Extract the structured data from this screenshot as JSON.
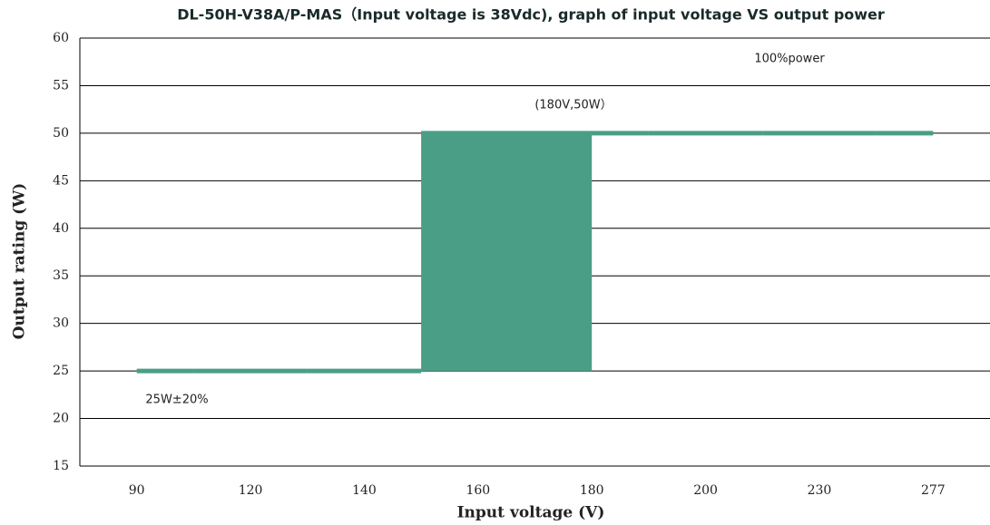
{
  "chart_data": {
    "type": "step",
    "title": "DL-50H-V38A/P-MAS（Input voltage is 38Vdc), graph of input voltage VS output power",
    "x_label": "Input voltage (V)",
    "y_label": "Output rating (W)",
    "categories": [
      "90",
      "120",
      "140",
      "160",
      "180",
      "200",
      "230",
      "277"
    ],
    "values": [
      25,
      25,
      25,
      50,
      50,
      50,
      50,
      50
    ],
    "color": "#4a9e85",
    "ylim": [
      15,
      60
    ],
    "yticks": [
      15,
      20,
      25,
      30,
      35,
      40,
      45,
      50,
      55,
      60
    ],
    "grid": true,
    "annotations": [
      "100%power",
      "(180V,50W）",
      "25W±20%"
    ]
  }
}
